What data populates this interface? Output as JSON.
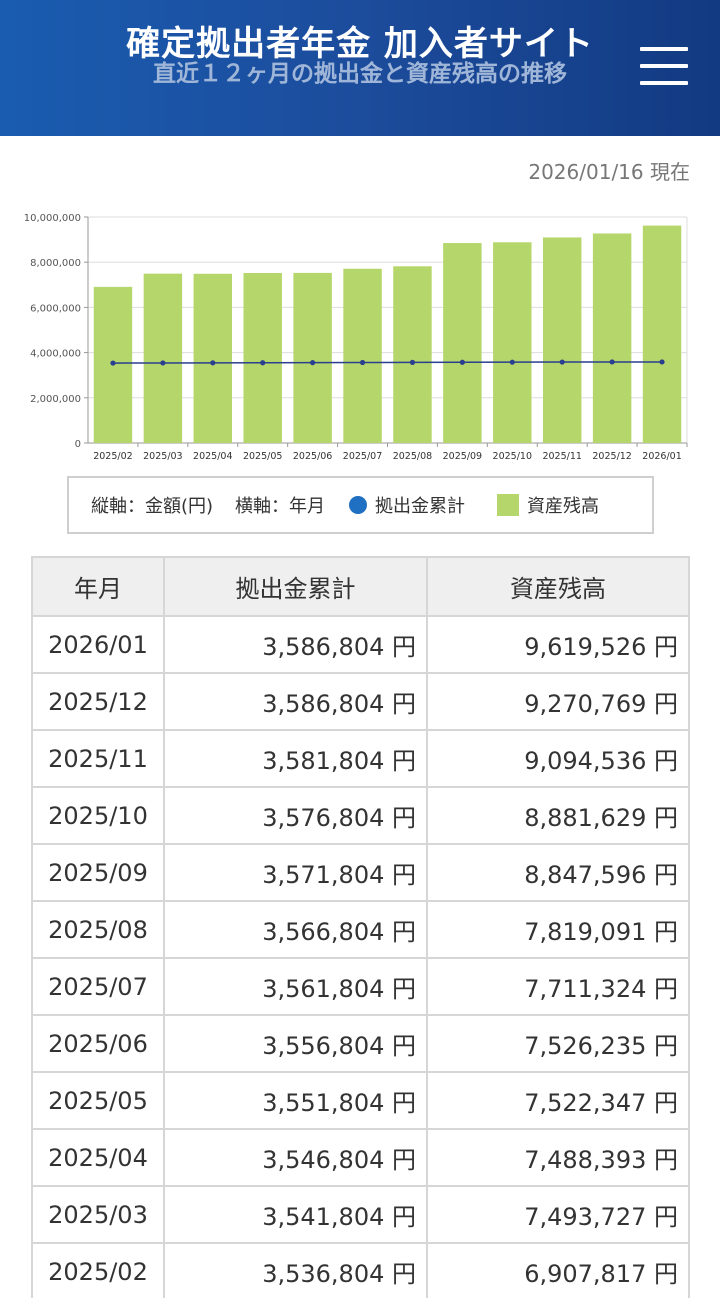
{
  "header": {
    "site_title": "確定拠出者年金 加入者サイト",
    "page_title": "直近１２ヶ月の拠出金と資産残高の推移",
    "menu_icon": "hamburger-menu-icon",
    "colors": {
      "bg_start": "#1a5cb0",
      "bg_end": "#123a82",
      "subtitle": "#9fb6d8"
    }
  },
  "as_of": "2026/01/16 現在",
  "legend": {
    "y_axis": "縦軸：金額(円)",
    "x_axis": "横軸：年月",
    "contrib_label": "拠出金累計",
    "balance_label": "資産残高"
  },
  "chart_data": {
    "type": "bar",
    "categories": [
      "2025/02",
      "2025/03",
      "2025/04",
      "2025/05",
      "2025/06",
      "2025/07",
      "2025/08",
      "2025/09",
      "2025/10",
      "2025/11",
      "2025/12",
      "2026/01"
    ],
    "series": [
      {
        "name": "資産残高",
        "kind": "bar",
        "color": "#b5d66a",
        "values": [
          6907817,
          7493727,
          7488393,
          7522347,
          7526235,
          7711324,
          7819091,
          8847596,
          8881629,
          9094536,
          9270769,
          9619526
        ]
      },
      {
        "name": "拠出金累計",
        "kind": "line",
        "color": "#2a3f8f",
        "values": [
          3536804,
          3541804,
          3546804,
          3551804,
          3556804,
          3561804,
          3566804,
          3571804,
          3576804,
          3581804,
          3586804,
          3586804
        ]
      }
    ],
    "y_ticks": [
      "0",
      "2,000,000",
      "4,000,000",
      "6,000,000",
      "8,000,000",
      "10,000,000"
    ],
    "ylim": [
      0,
      10000000
    ],
    "grid": true,
    "legend_position": "bottom"
  },
  "table": {
    "headers": [
      "年月",
      "拠出金累計",
      "資産残高"
    ],
    "rows": [
      [
        "2026/01",
        "3,586,804 円",
        "9,619,526 円"
      ],
      [
        "2025/12",
        "3,586,804 円",
        "9,270,769 円"
      ],
      [
        "2025/11",
        "3,581,804 円",
        "9,094,536 円"
      ],
      [
        "2025/10",
        "3,576,804 円",
        "8,881,629 円"
      ],
      [
        "2025/09",
        "3,571,804 円",
        "8,847,596 円"
      ],
      [
        "2025/08",
        "3,566,804 円",
        "7,819,091 円"
      ],
      [
        "2025/07",
        "3,561,804 円",
        "7,711,324 円"
      ],
      [
        "2025/06",
        "3,556,804 円",
        "7,526,235 円"
      ],
      [
        "2025/05",
        "3,551,804 円",
        "7,522,347 円"
      ],
      [
        "2025/04",
        "3,546,804 円",
        "7,488,393 円"
      ],
      [
        "2025/03",
        "3,541,804 円",
        "7,493,727 円"
      ],
      [
        "2025/02",
        "3,536,804 円",
        "6,907,817 円"
      ]
    ]
  }
}
